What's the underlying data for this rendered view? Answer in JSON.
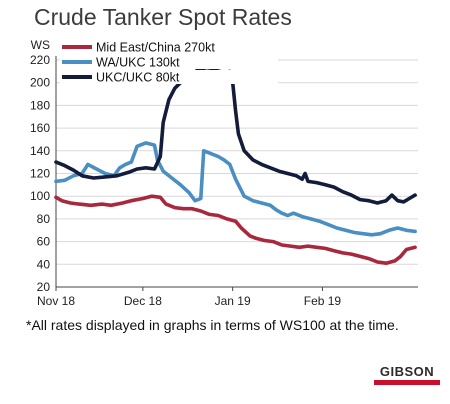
{
  "title": "Crude Tanker Spot Rates",
  "footnote": "*All rates displayed in graphs in terms of WS100 at the time.",
  "logo_text": "GIBSON",
  "chart_data": {
    "type": "line",
    "title": "Crude Tanker Spot Rates",
    "ylabel": "WS",
    "ylim": [
      20,
      220
    ],
    "yticks": [
      20,
      40,
      60,
      80,
      100,
      120,
      140,
      160,
      180,
      200,
      220
    ],
    "xlim": [
      "2018-11-01",
      "2019-03-06"
    ],
    "xticks": [
      {
        "label": "Nov 18",
        "date": "2018-11-01"
      },
      {
        "label": "Dec 18",
        "date": "2018-12-01"
      },
      {
        "label": "Jan 19",
        "date": "2019-01-01"
      },
      {
        "label": "Feb 19",
        "date": "2019-02-01"
      }
    ],
    "grid": "horizontal",
    "legend_position": "top-left",
    "series": [
      {
        "name": "Mid East/China 270kt",
        "color": "#a8283e",
        "points": [
          [
            "2018-11-01",
            99
          ],
          [
            "2018-11-03",
            96
          ],
          [
            "2018-11-06",
            94
          ],
          [
            "2018-11-09",
            93
          ],
          [
            "2018-11-13",
            92
          ],
          [
            "2018-11-17",
            93
          ],
          [
            "2018-11-20",
            92
          ],
          [
            "2018-11-24",
            94
          ],
          [
            "2018-11-27",
            96
          ],
          [
            "2018-12-01",
            98
          ],
          [
            "2018-12-04",
            100
          ],
          [
            "2018-12-07",
            99
          ],
          [
            "2018-12-09",
            93
          ],
          [
            "2018-12-12",
            90
          ],
          [
            "2018-12-15",
            89
          ],
          [
            "2018-12-18",
            89
          ],
          [
            "2018-12-21",
            87
          ],
          [
            "2018-12-24",
            84
          ],
          [
            "2018-12-27",
            83
          ],
          [
            "2018-12-30",
            80
          ],
          [
            "2019-01-02",
            78
          ],
          [
            "2019-01-04",
            72
          ],
          [
            "2019-01-07",
            65
          ],
          [
            "2019-01-09",
            63
          ],
          [
            "2019-01-12",
            61
          ],
          [
            "2019-01-15",
            60
          ],
          [
            "2019-01-18",
            57
          ],
          [
            "2019-01-21",
            56
          ],
          [
            "2019-01-24",
            55
          ],
          [
            "2019-01-27",
            56
          ],
          [
            "2019-01-30",
            55
          ],
          [
            "2019-02-02",
            54
          ],
          [
            "2019-02-05",
            52
          ],
          [
            "2019-02-08",
            50
          ],
          [
            "2019-02-11",
            49
          ],
          [
            "2019-02-14",
            47
          ],
          [
            "2019-02-17",
            45
          ],
          [
            "2019-02-20",
            42
          ],
          [
            "2019-02-23",
            41
          ],
          [
            "2019-02-26",
            43
          ],
          [
            "2019-02-28",
            47
          ],
          [
            "2019-03-02",
            53
          ],
          [
            "2019-03-05",
            55
          ]
        ]
      },
      {
        "name": "WA/UKC 130kt",
        "color": "#4a8ec2",
        "points": [
          [
            "2018-11-01",
            113
          ],
          [
            "2018-11-04",
            114
          ],
          [
            "2018-11-07",
            118
          ],
          [
            "2018-11-10",
            120
          ],
          [
            "2018-11-12",
            128
          ],
          [
            "2018-11-15",
            124
          ],
          [
            "2018-11-18",
            120
          ],
          [
            "2018-11-21",
            118
          ],
          [
            "2018-11-23",
            125
          ],
          [
            "2018-11-25",
            128
          ],
          [
            "2018-11-27",
            130
          ],
          [
            "2018-11-29",
            144
          ],
          [
            "2018-12-02",
            147
          ],
          [
            "2018-12-05",
            145
          ],
          [
            "2018-12-06",
            132
          ],
          [
            "2018-12-08",
            122
          ],
          [
            "2018-12-11",
            116
          ],
          [
            "2018-12-14",
            110
          ],
          [
            "2018-12-17",
            103
          ],
          [
            "2018-12-19",
            96
          ],
          [
            "2018-12-21",
            98
          ],
          [
            "2018-12-22",
            140
          ],
          [
            "2018-12-24",
            138
          ],
          [
            "2018-12-27",
            135
          ],
          [
            "2018-12-29",
            132
          ],
          [
            "2018-12-31",
            128
          ],
          [
            "2019-01-02",
            115
          ],
          [
            "2019-01-05",
            100
          ],
          [
            "2019-01-08",
            96
          ],
          [
            "2019-01-11",
            94
          ],
          [
            "2019-01-14",
            92
          ],
          [
            "2019-01-16",
            88
          ],
          [
            "2019-01-18",
            85
          ],
          [
            "2019-01-20",
            83
          ],
          [
            "2019-01-22",
            85
          ],
          [
            "2019-01-25",
            82
          ],
          [
            "2019-01-28",
            80
          ],
          [
            "2019-01-31",
            78
          ],
          [
            "2019-02-03",
            75
          ],
          [
            "2019-02-06",
            72
          ],
          [
            "2019-02-09",
            70
          ],
          [
            "2019-02-12",
            68
          ],
          [
            "2019-02-15",
            67
          ],
          [
            "2019-02-18",
            66
          ],
          [
            "2019-02-21",
            67
          ],
          [
            "2019-02-24",
            70
          ],
          [
            "2019-02-27",
            72
          ],
          [
            "2019-03-02",
            70
          ],
          [
            "2019-03-05",
            69
          ]
        ]
      },
      {
        "name": "UKC/UKC 80kt",
        "color": "#141c3c",
        "points": [
          [
            "2018-11-01",
            130
          ],
          [
            "2018-11-04",
            127
          ],
          [
            "2018-11-07",
            123
          ],
          [
            "2018-11-10",
            118
          ],
          [
            "2018-11-14",
            116
          ],
          [
            "2018-11-18",
            117
          ],
          [
            "2018-11-22",
            118
          ],
          [
            "2018-11-26",
            121
          ],
          [
            "2018-11-29",
            124
          ],
          [
            "2018-12-02",
            125
          ],
          [
            "2018-12-05",
            124
          ],
          [
            "2018-12-07",
            135
          ],
          [
            "2018-12-08",
            165
          ],
          [
            "2018-12-10",
            185
          ],
          [
            "2018-12-12",
            195
          ],
          [
            "2018-12-14",
            200
          ],
          [
            "2018-12-16",
            202
          ],
          [
            "2018-12-18",
            205
          ],
          [
            "2018-12-20",
            212
          ],
          [
            "2018-12-23",
            210
          ],
          [
            "2018-12-26",
            211
          ],
          [
            "2018-12-29",
            209
          ],
          [
            "2018-12-31",
            210
          ],
          [
            "2019-01-01",
            200
          ],
          [
            "2019-01-02",
            175
          ],
          [
            "2019-01-03",
            155
          ],
          [
            "2019-01-05",
            140
          ],
          [
            "2019-01-08",
            132
          ],
          [
            "2019-01-11",
            128
          ],
          [
            "2019-01-14",
            125
          ],
          [
            "2019-01-17",
            122
          ],
          [
            "2019-01-20",
            120
          ],
          [
            "2019-01-23",
            118
          ],
          [
            "2019-01-25",
            115
          ],
          [
            "2019-01-26",
            120
          ],
          [
            "2019-01-27",
            113
          ],
          [
            "2019-01-30",
            112
          ],
          [
            "2019-02-02",
            110
          ],
          [
            "2019-02-05",
            108
          ],
          [
            "2019-02-08",
            104
          ],
          [
            "2019-02-11",
            101
          ],
          [
            "2019-02-14",
            97
          ],
          [
            "2019-02-17",
            96
          ],
          [
            "2019-02-20",
            94
          ],
          [
            "2019-02-23",
            96
          ],
          [
            "2019-02-25",
            101
          ],
          [
            "2019-02-27",
            96
          ],
          [
            "2019-03-01",
            95
          ],
          [
            "2019-03-03",
            98
          ],
          [
            "2019-03-05",
            101
          ]
        ]
      }
    ]
  }
}
